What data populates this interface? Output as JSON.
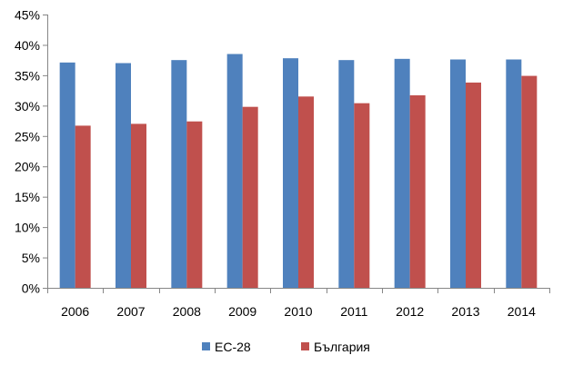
{
  "chart_data": {
    "type": "bar",
    "categories": [
      "2006",
      "2007",
      "2008",
      "2009",
      "2010",
      "2011",
      "2012",
      "2013",
      "2014"
    ],
    "series": [
      {
        "name": "ЕС-28",
        "color": "#4F81BD",
        "values": [
          37.1,
          37.0,
          37.5,
          38.5,
          37.8,
          37.5,
          37.7,
          37.6,
          37.6
        ]
      },
      {
        "name": "България",
        "color": "#C0504D",
        "values": [
          26.7,
          27.0,
          27.4,
          29.8,
          31.5,
          30.4,
          31.7,
          33.8,
          34.9
        ]
      }
    ],
    "ylim": [
      0,
      45
    ],
    "yticks": [
      "0%",
      "5%",
      "10%",
      "15%",
      "20%",
      "25%",
      "30%",
      "35%",
      "40%",
      "45%"
    ],
    "ytick_values": [
      0,
      5,
      10,
      15,
      20,
      25,
      30,
      35,
      40,
      45
    ],
    "grid": false,
    "legend_position": "bottom"
  }
}
